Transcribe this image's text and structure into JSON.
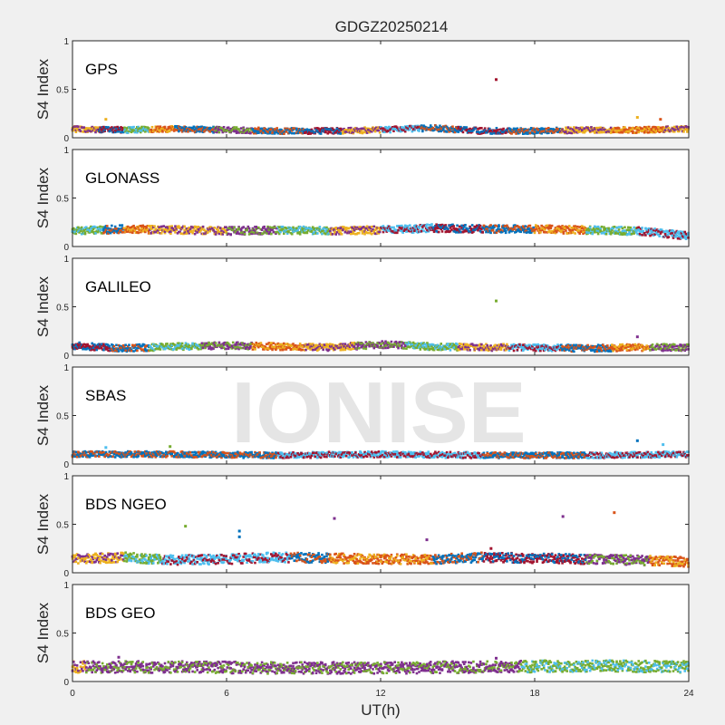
{
  "chart_data": {
    "type": "scatter",
    "title": "GDGZ20250214",
    "xlabel": "UT(h)",
    "ylabel": "S4 Index",
    "xlim": [
      0,
      24
    ],
    "ylim": [
      0,
      1
    ],
    "x_ticks": [
      0,
      6,
      12,
      18,
      24
    ],
    "y_ticks": [
      0,
      0.5,
      1
    ],
    "y_tick_labels": [
      "0",
      "0.5",
      "1"
    ],
    "grid": false,
    "watermark": "IONISE",
    "colors": [
      "#0072BD",
      "#D95319",
      "#EDB120",
      "#7E2F8E",
      "#77AC30",
      "#4DBEEE",
      "#A2142F"
    ],
    "panels": [
      {
        "name": "GPS",
        "baseline": [
          {
            "x": 0,
            "y": 0.09
          },
          {
            "x": 2,
            "y": 0.08
          },
          {
            "x": 4,
            "y": 0.09
          },
          {
            "x": 6,
            "y": 0.08
          },
          {
            "x": 8,
            "y": 0.07
          },
          {
            "x": 10,
            "y": 0.07
          },
          {
            "x": 12,
            "y": 0.08
          },
          {
            "x": 14,
            "y": 0.1
          },
          {
            "x": 16,
            "y": 0.07
          },
          {
            "x": 18,
            "y": 0.07
          },
          {
            "x": 20,
            "y": 0.08
          },
          {
            "x": 22,
            "y": 0.08
          },
          {
            "x": 24,
            "y": 0.09
          }
        ],
        "spread": 0.03,
        "color_segments": [
          {
            "x": 0,
            "c": 2
          },
          {
            "x": 1,
            "c": 6
          },
          {
            "x": 2,
            "c": 4
          },
          {
            "x": 3,
            "c": 1
          },
          {
            "x": 4,
            "c": 0
          },
          {
            "x": 5.5,
            "c": 3
          },
          {
            "x": 7,
            "c": 0
          },
          {
            "x": 9,
            "c": 6
          },
          {
            "x": 10.5,
            "c": 2
          },
          {
            "x": 12,
            "c": 5
          },
          {
            "x": 13.5,
            "c": 0
          },
          {
            "x": 15,
            "c": 6
          },
          {
            "x": 17,
            "c": 0
          },
          {
            "x": 19,
            "c": 2
          },
          {
            "x": 21,
            "c": 1
          },
          {
            "x": 23,
            "c": 2
          }
        ],
        "outliers": [
          {
            "x": 16.5,
            "y": 0.6,
            "c": 6
          },
          {
            "x": 1.3,
            "y": 0.19,
            "c": 2
          },
          {
            "x": 22,
            "y": 0.21,
            "c": 2
          },
          {
            "x": 22.9,
            "y": 0.19,
            "c": 1
          }
        ]
      },
      {
        "name": "GLONASS",
        "baseline": [
          {
            "x": 0,
            "y": 0.16
          },
          {
            "x": 2,
            "y": 0.18
          },
          {
            "x": 4,
            "y": 0.17
          },
          {
            "x": 6,
            "y": 0.16
          },
          {
            "x": 8,
            "y": 0.17
          },
          {
            "x": 10,
            "y": 0.16
          },
          {
            "x": 12,
            "y": 0.17
          },
          {
            "x": 14,
            "y": 0.19
          },
          {
            "x": 16,
            "y": 0.18
          },
          {
            "x": 18,
            "y": 0.18
          },
          {
            "x": 20,
            "y": 0.17
          },
          {
            "x": 22,
            "y": 0.16
          },
          {
            "x": 24,
            "y": 0.11
          }
        ],
        "spread": 0.04,
        "color_segments": [
          {
            "x": 0,
            "c": 4
          },
          {
            "x": 1.2,
            "c": 0
          },
          {
            "x": 2,
            "c": 1
          },
          {
            "x": 3,
            "c": 2
          },
          {
            "x": 6,
            "c": 3
          },
          {
            "x": 8,
            "c": 4
          },
          {
            "x": 10,
            "c": 2
          },
          {
            "x": 12,
            "c": 5
          },
          {
            "x": 14,
            "c": 6
          },
          {
            "x": 16,
            "c": 0
          },
          {
            "x": 18,
            "c": 1
          },
          {
            "x": 20,
            "c": 4
          },
          {
            "x": 22,
            "c": 5
          }
        ],
        "outliers": []
      },
      {
        "name": "GALILEO",
        "baseline": [
          {
            "x": 0,
            "y": 0.1
          },
          {
            "x": 2,
            "y": 0.07
          },
          {
            "x": 4,
            "y": 0.09
          },
          {
            "x": 6,
            "y": 0.1
          },
          {
            "x": 8,
            "y": 0.09
          },
          {
            "x": 10,
            "y": 0.08
          },
          {
            "x": 12,
            "y": 0.11
          },
          {
            "x": 14,
            "y": 0.09
          },
          {
            "x": 16,
            "y": 0.08
          },
          {
            "x": 18,
            "y": 0.08
          },
          {
            "x": 20,
            "y": 0.07
          },
          {
            "x": 22,
            "y": 0.08
          },
          {
            "x": 24,
            "y": 0.08
          }
        ],
        "spread": 0.035,
        "color_segments": [
          {
            "x": 0,
            "c": 6
          },
          {
            "x": 1.5,
            "c": 0
          },
          {
            "x": 3,
            "c": 4
          },
          {
            "x": 5,
            "c": 3
          },
          {
            "x": 7,
            "c": 1
          },
          {
            "x": 9,
            "c": 2
          },
          {
            "x": 11,
            "c": 3
          },
          {
            "x": 13,
            "c": 4
          },
          {
            "x": 15,
            "c": 2
          },
          {
            "x": 17,
            "c": 5
          },
          {
            "x": 19,
            "c": 0
          },
          {
            "x": 21,
            "c": 1
          },
          {
            "x": 22.5,
            "c": 3
          }
        ],
        "outliers": [
          {
            "x": 16.5,
            "y": 0.56,
            "c": 4
          },
          {
            "x": 22,
            "y": 0.19,
            "c": 3
          }
        ]
      },
      {
        "name": "SBAS",
        "baseline": [
          {
            "x": 0,
            "y": 0.1
          },
          {
            "x": 4,
            "y": 0.1
          },
          {
            "x": 8,
            "y": 0.09
          },
          {
            "x": 12,
            "y": 0.1
          },
          {
            "x": 16,
            "y": 0.09
          },
          {
            "x": 20,
            "y": 0.09
          },
          {
            "x": 24,
            "y": 0.1
          }
        ],
        "spread": 0.03,
        "color_segments": [
          {
            "x": 0,
            "c": 0
          },
          {
            "x": 8,
            "c": 5
          },
          {
            "x": 16,
            "c": 0
          },
          {
            "x": 20,
            "c": 5
          }
        ],
        "outliers": [
          {
            "x": 3.8,
            "y": 0.18,
            "c": 4
          },
          {
            "x": 22,
            "y": 0.24,
            "c": 0
          },
          {
            "x": 23,
            "y": 0.2,
            "c": 5
          },
          {
            "x": 1.3,
            "y": 0.17,
            "c": 5
          }
        ]
      },
      {
        "name": "BDS NGEO",
        "baseline": [
          {
            "x": 0,
            "y": 0.14
          },
          {
            "x": 2,
            "y": 0.16
          },
          {
            "x": 4,
            "y": 0.13
          },
          {
            "x": 6,
            "y": 0.14
          },
          {
            "x": 8,
            "y": 0.16
          },
          {
            "x": 10,
            "y": 0.15
          },
          {
            "x": 12,
            "y": 0.14
          },
          {
            "x": 14,
            "y": 0.14
          },
          {
            "x": 16,
            "y": 0.16
          },
          {
            "x": 18,
            "y": 0.15
          },
          {
            "x": 20,
            "y": 0.14
          },
          {
            "x": 22,
            "y": 0.13
          },
          {
            "x": 24,
            "y": 0.11
          }
        ],
        "spread": 0.05,
        "color_segments": [
          {
            "x": 0,
            "c": 2
          },
          {
            "x": 2,
            "c": 4
          },
          {
            "x": 3.5,
            "c": 5
          },
          {
            "x": 8.5,
            "c": 0
          },
          {
            "x": 10,
            "c": 1
          },
          {
            "x": 14,
            "c": 0
          },
          {
            "x": 16,
            "c": 6
          },
          {
            "x": 18,
            "c": 6
          },
          {
            "x": 20,
            "c": 3
          },
          {
            "x": 22.5,
            "c": 1
          }
        ],
        "outliers": [
          {
            "x": 4.4,
            "y": 0.48,
            "c": 4
          },
          {
            "x": 6.5,
            "y": 0.43,
            "c": 0
          },
          {
            "x": 6.5,
            "y": 0.37,
            "c": 0
          },
          {
            "x": 10.2,
            "y": 0.56,
            "c": 3
          },
          {
            "x": 13.8,
            "y": 0.34,
            "c": 3
          },
          {
            "x": 19.1,
            "y": 0.58,
            "c": 3
          },
          {
            "x": 21.1,
            "y": 0.62,
            "c": 1
          },
          {
            "x": 16.3,
            "y": 0.25,
            "c": 6
          }
        ]
      },
      {
        "name": "BDS GEO",
        "baseline": [
          {
            "x": 0,
            "y": 0.15
          },
          {
            "x": 4,
            "y": 0.15
          },
          {
            "x": 8,
            "y": 0.14
          },
          {
            "x": 12,
            "y": 0.14
          },
          {
            "x": 16,
            "y": 0.15
          },
          {
            "x": 20,
            "y": 0.16
          },
          {
            "x": 24,
            "y": 0.15
          }
        ],
        "spread": 0.06,
        "color_segments": [
          {
            "x": 0,
            "c": 2
          },
          {
            "x": 0.5,
            "c": 3
          },
          {
            "x": 17.5,
            "c": 4
          }
        ],
        "outliers": [
          {
            "x": 1.8,
            "y": 0.25,
            "c": 3
          },
          {
            "x": 16.5,
            "y": 0.24,
            "c": 3
          }
        ]
      }
    ]
  }
}
